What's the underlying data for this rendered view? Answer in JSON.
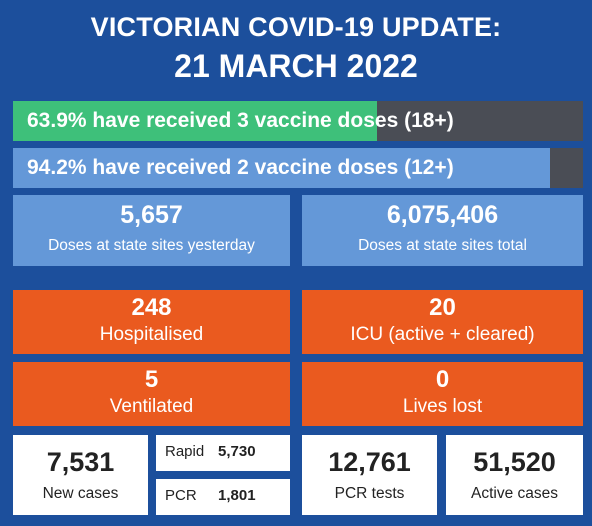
{
  "header": {
    "title_line1": "VICTORIAN COVID-19 UPDATE:",
    "title_line2": "21 MARCH 2022"
  },
  "vaccine_bars": [
    {
      "text": "63.9% have received 3 vaccine doses (18+)",
      "percent": 63.9,
      "fill_color": "#3ec07a",
      "track_color": "#4a4d55"
    },
    {
      "text": "94.2% have received 2 vaccine doses (12+)",
      "percent": 94.2,
      "fill_color": "#6498d8",
      "track_color": "#4a4d55"
    }
  ],
  "doses": [
    {
      "value": "5,657",
      "label": "Doses at state sites yesterday"
    },
    {
      "value": "6,075,406",
      "label": "Doses at state sites total"
    }
  ],
  "hospital": [
    {
      "value": "248",
      "label": "Hospitalised"
    },
    {
      "value": "20",
      "label": "ICU (active + cleared)"
    },
    {
      "value": "5",
      "label": "Ventilated"
    },
    {
      "value": "0",
      "label": "Lives lost"
    }
  ],
  "cases": {
    "new": {
      "value": "7,531",
      "label": "New cases"
    },
    "rapid": {
      "key": "Rapid",
      "value": "5,730"
    },
    "pcr": {
      "key": "PCR",
      "value": "1,801"
    },
    "pcr_tests": {
      "value": "12,761",
      "label": "PCR tests"
    },
    "active": {
      "value": "51,520",
      "label": "Active cases"
    }
  },
  "colors": {
    "background": "#1c4f9c",
    "blue_tile": "#6498d8",
    "orange_tile": "#ea5a1f",
    "white_tile": "#ffffff"
  }
}
